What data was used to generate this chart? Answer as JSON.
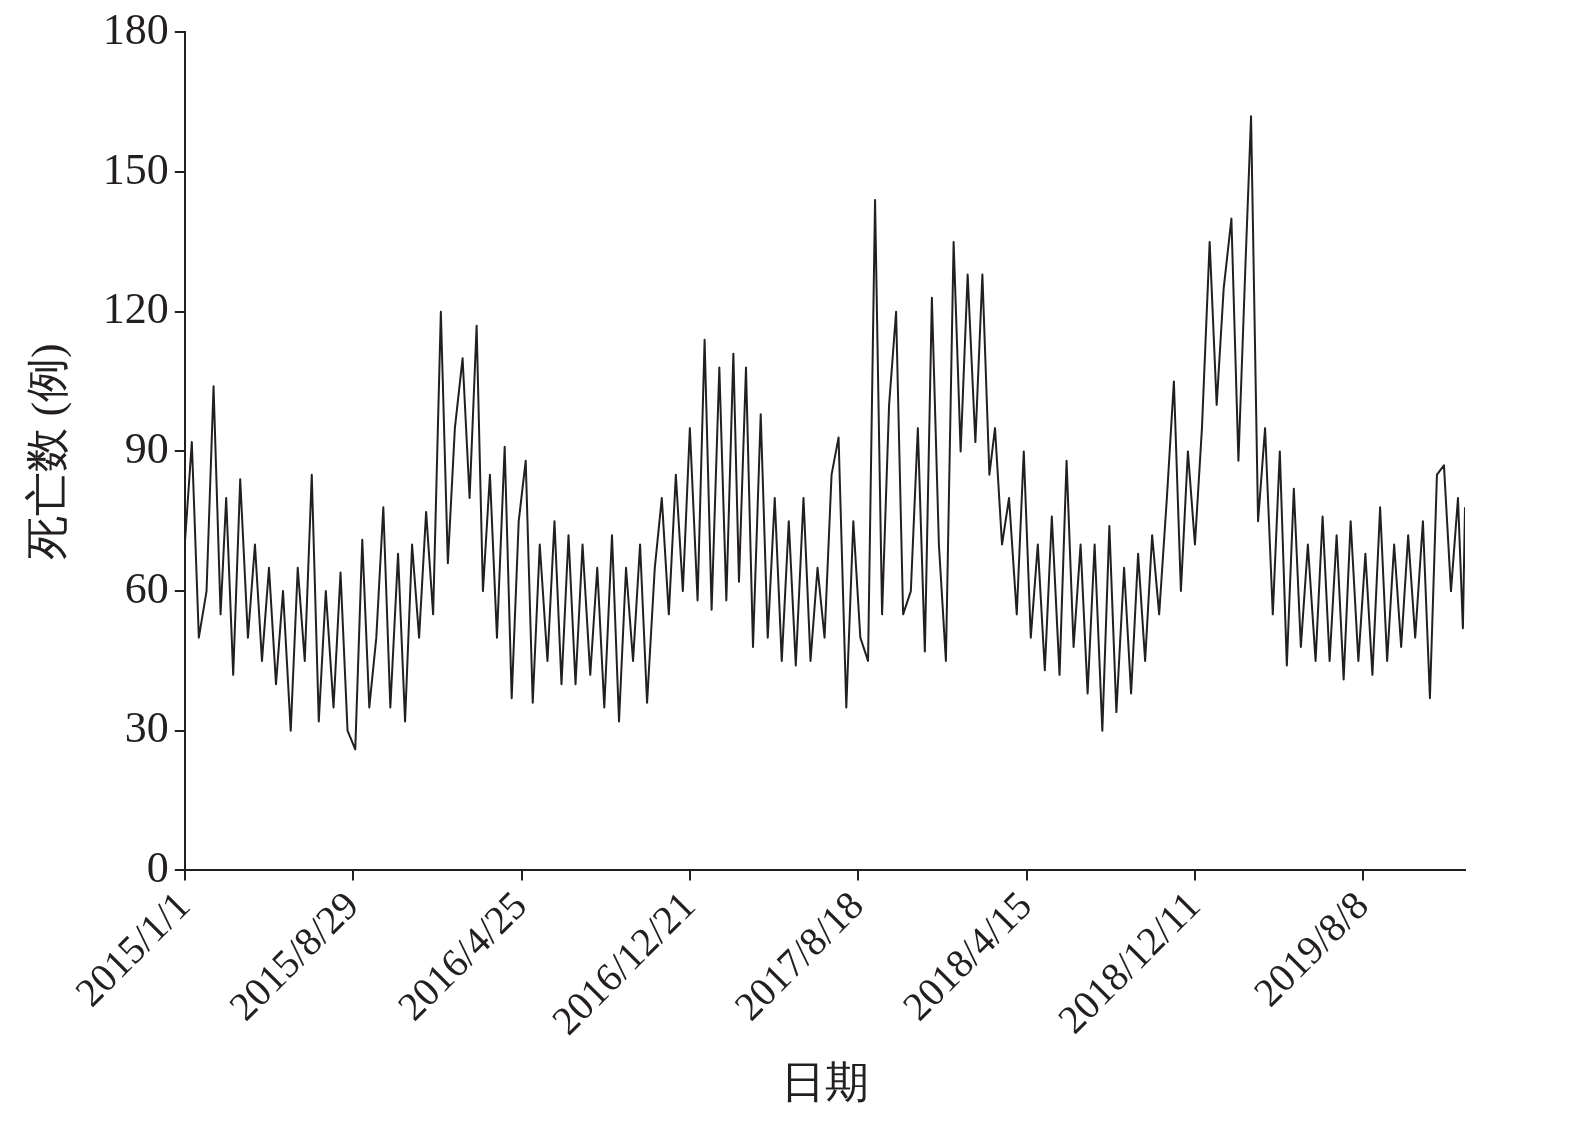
{
  "chart_data": {
    "type": "line",
    "xlabel": "日期",
    "ylabel": "死亡数 (例)",
    "xlim": [
      "2015-01-01",
      "2019-12-31"
    ],
    "xticks": [
      {
        "value": "2015-01-01",
        "label": "2015/1/1"
      },
      {
        "value": "2015-08-29",
        "label": "2015/8/29"
      },
      {
        "value": "2016-04-25",
        "label": "2016/4/25"
      },
      {
        "value": "2016-12-21",
        "label": "2016/12/21"
      },
      {
        "value": "2017-08-18",
        "label": "2017/8/18"
      },
      {
        "value": "2018-04-15",
        "label": "2018/4/15"
      },
      {
        "value": "2018-12-11",
        "label": "2018/12/11"
      },
      {
        "value": "2019-08-08",
        "label": "2019/8/8"
      }
    ],
    "ylim": [
      0,
      180
    ],
    "yticks": [
      0,
      30,
      60,
      90,
      120,
      150,
      180
    ],
    "grid": false,
    "legend": false,
    "marker": "none",
    "line_style": "solid",
    "x": [
      "2015-01-01",
      "2015-01-11",
      "2015-01-21",
      "2015-02-01",
      "2015-02-11",
      "2015-02-21",
      "2015-03-01",
      "2015-03-11",
      "2015-03-21",
      "2015-04-01",
      "2015-04-11",
      "2015-04-21",
      "2015-05-01",
      "2015-05-11",
      "2015-05-21",
      "2015-06-01",
      "2015-06-11",
      "2015-06-21",
      "2015-07-01",
      "2015-07-11",
      "2015-07-21",
      "2015-08-01",
      "2015-08-11",
      "2015-08-21",
      "2015-09-01",
      "2015-09-11",
      "2015-09-21",
      "2015-10-01",
      "2015-10-11",
      "2015-10-21",
      "2015-11-01",
      "2015-11-11",
      "2015-11-21",
      "2015-12-01",
      "2015-12-11",
      "2015-12-21",
      "2016-01-01",
      "2016-01-11",
      "2016-01-21",
      "2016-02-01",
      "2016-02-11",
      "2016-02-21",
      "2016-03-01",
      "2016-03-11",
      "2016-03-21",
      "2016-04-01",
      "2016-04-11",
      "2016-04-21",
      "2016-05-01",
      "2016-05-11",
      "2016-05-21",
      "2016-06-01",
      "2016-06-11",
      "2016-06-21",
      "2016-07-01",
      "2016-07-11",
      "2016-07-21",
      "2016-08-01",
      "2016-08-11",
      "2016-08-21",
      "2016-09-01",
      "2016-09-11",
      "2016-09-21",
      "2016-10-01",
      "2016-10-11",
      "2016-10-21",
      "2016-11-01",
      "2016-11-11",
      "2016-11-21",
      "2016-12-01",
      "2016-12-11",
      "2016-12-21",
      "2017-01-01",
      "2017-01-11",
      "2017-01-21",
      "2017-02-01",
      "2017-02-11",
      "2017-02-21",
      "2017-03-01",
      "2017-03-11",
      "2017-03-21",
      "2017-04-01",
      "2017-04-11",
      "2017-04-21",
      "2017-05-01",
      "2017-05-11",
      "2017-05-21",
      "2017-06-01",
      "2017-06-11",
      "2017-06-21",
      "2017-07-01",
      "2017-07-11",
      "2017-07-21",
      "2017-08-01",
      "2017-08-11",
      "2017-08-21",
      "2017-09-01",
      "2017-09-11",
      "2017-09-21",
      "2017-10-01",
      "2017-10-11",
      "2017-10-21",
      "2017-11-01",
      "2017-11-11",
      "2017-11-21",
      "2017-12-01",
      "2017-12-11",
      "2017-12-21",
      "2018-01-01",
      "2018-01-11",
      "2018-01-21",
      "2018-02-01",
      "2018-02-11",
      "2018-02-21",
      "2018-03-01",
      "2018-03-11",
      "2018-03-21",
      "2018-04-01",
      "2018-04-11",
      "2018-04-21",
      "2018-05-01",
      "2018-05-11",
      "2018-05-21",
      "2018-06-01",
      "2018-06-11",
      "2018-06-21",
      "2018-07-01",
      "2018-07-11",
      "2018-07-21",
      "2018-08-01",
      "2018-08-11",
      "2018-08-21",
      "2018-09-01",
      "2018-09-11",
      "2018-09-21",
      "2018-10-01",
      "2018-10-11",
      "2018-10-21",
      "2018-11-01",
      "2018-11-11",
      "2018-11-21",
      "2018-12-01",
      "2018-12-11",
      "2018-12-21",
      "2019-01-01",
      "2019-01-11",
      "2019-01-21",
      "2019-02-01",
      "2019-02-11",
      "2019-02-21",
      "2019-03-01",
      "2019-03-11",
      "2019-03-21",
      "2019-04-01",
      "2019-04-11",
      "2019-04-21",
      "2019-05-01",
      "2019-05-11",
      "2019-05-21",
      "2019-06-01",
      "2019-06-11",
      "2019-06-21",
      "2019-07-01",
      "2019-07-11",
      "2019-07-21",
      "2019-08-01",
      "2019-08-11",
      "2019-08-21",
      "2019-09-01",
      "2019-09-11",
      "2019-09-21",
      "2019-10-01",
      "2019-10-11",
      "2019-10-21",
      "2019-11-01",
      "2019-11-11",
      "2019-11-21",
      "2019-12-01",
      "2019-12-11",
      "2019-12-21",
      "2019-12-28",
      "2019-12-31"
    ],
    "series": [
      {
        "color": "#231f20",
        "values": [
          70,
          92,
          50,
          60,
          104,
          55,
          80,
          42,
          84,
          50,
          70,
          45,
          65,
          40,
          60,
          30,
          65,
          45,
          85,
          32,
          60,
          35,
          64,
          30,
          26,
          71,
          35,
          50,
          78,
          35,
          68,
          32,
          70,
          50,
          77,
          55,
          120,
          66,
          95,
          110,
          80,
          117,
          60,
          85,
          50,
          91,
          37,
          75,
          88,
          36,
          70,
          45,
          75,
          40,
          72,
          40,
          70,
          42,
          65,
          35,
          72,
          32,
          65,
          45,
          70,
          36,
          65,
          80,
          55,
          85,
          60,
          95,
          58,
          114,
          56,
          108,
          58,
          111,
          62,
          108,
          48,
          98,
          50,
          80,
          45,
          75,
          44,
          80,
          45,
          65,
          50,
          85,
          93,
          35,
          75,
          50,
          45,
          144,
          55,
          100,
          120,
          55,
          60,
          95,
          47,
          123,
          70,
          45,
          135,
          90,
          128,
          92,
          128,
          85,
          95,
          70,
          80,
          55,
          90,
          50,
          70,
          43,
          76,
          42,
          88,
          48,
          70,
          38,
          70,
          30,
          74,
          34,
          65,
          38,
          68,
          45,
          72,
          55,
          80,
          105,
          60,
          90,
          70,
          95,
          135,
          100,
          125,
          140,
          88,
          130,
          162,
          75,
          95,
          55,
          90,
          44,
          82,
          48,
          70,
          45,
          76,
          45,
          72,
          41,
          75,
          45,
          68,
          42,
          78,
          45,
          70,
          48,
          72,
          50,
          75,
          37,
          85,
          87,
          60,
          80,
          52,
          78
        ]
      }
    ]
  }
}
